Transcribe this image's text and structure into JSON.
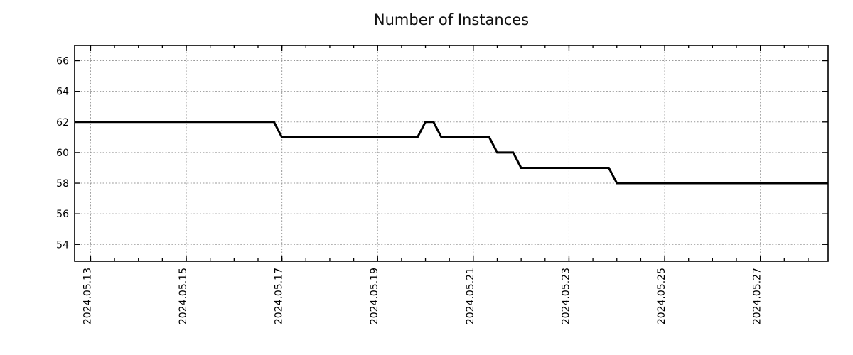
{
  "chart_data": {
    "type": "line",
    "title": "Number of Instances",
    "xlabel": "",
    "ylabel": "",
    "grid": "dotted",
    "legend": "none",
    "style": {
      "line_color": "#000000",
      "line_width": 3,
      "grid_color": "#999999",
      "axis_color": "#000000",
      "background": "#ffffff"
    },
    "x_axis": {
      "range": [
        "2024-05-12 16:00",
        "2024-05-28 10:00"
      ],
      "minor_tick_interval_hours": 12,
      "ticks": [
        {
          "date": "2024-05-13",
          "label": "2024.05.13"
        },
        {
          "date": "2024-05-15",
          "label": "2024.05.15"
        },
        {
          "date": "2024-05-17",
          "label": "2024.05.17"
        },
        {
          "date": "2024-05-19",
          "label": "2024.05.19"
        },
        {
          "date": "2024-05-21",
          "label": "2024.05.21"
        },
        {
          "date": "2024-05-23",
          "label": "2024.05.23"
        },
        {
          "date": "2024-05-25",
          "label": "2024.05.25"
        },
        {
          "date": "2024-05-27",
          "label": "2024.05.27"
        }
      ]
    },
    "y_axis": {
      "range": [
        52.9,
        67.0
      ],
      "ticks": [
        54,
        56,
        58,
        60,
        62,
        64,
        66
      ]
    },
    "series": [
      {
        "name": "instances",
        "x": [
          "2024-05-12 16:00",
          "2024-05-16 20:00",
          "2024-05-17 00:00",
          "2024-05-19 20:00",
          "2024-05-20 00:00",
          "2024-05-20 04:00",
          "2024-05-20 08:00",
          "2024-05-21 08:00",
          "2024-05-21 12:00",
          "2024-05-21 20:00",
          "2024-05-22 00:00",
          "2024-05-23 20:00",
          "2024-05-24 00:00",
          "2024-05-28 10:00"
        ],
        "y": [
          62,
          62,
          61,
          61,
          62,
          62,
          61,
          61,
          60,
          60,
          59,
          59,
          58,
          58
        ]
      }
    ]
  }
}
